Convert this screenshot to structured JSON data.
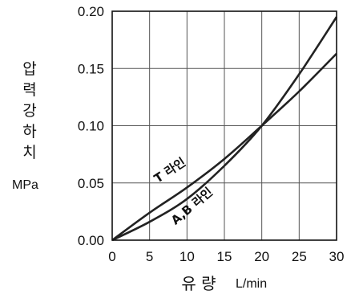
{
  "chart_data": {
    "type": "line",
    "title": "",
    "xlabel": "유 량",
    "xlabel_unit": "L/min",
    "ylabel_chars": [
      "압",
      "력",
      "강",
      "하",
      "치"
    ],
    "ylabel_unit": "MPa",
    "xlim": [
      0,
      30
    ],
    "ylim": [
      0,
      0.2
    ],
    "x_ticks": [
      0,
      5,
      10,
      15,
      20,
      25,
      30
    ],
    "x_tick_labels": [
      "0",
      "5",
      "10",
      "15",
      "20",
      "25",
      "30"
    ],
    "y_ticks": [
      0,
      0.05,
      0.1,
      0.15,
      0.2
    ],
    "y_tick_labels": [
      "0.00",
      "0.05",
      "0.10",
      "0.15",
      "0.20"
    ],
    "grid": true,
    "legend": "none",
    "series": [
      {
        "name": "T 라인",
        "x": [
          0,
          5,
          10,
          15,
          20,
          25,
          30
        ],
        "y": [
          0,
          0.024,
          0.046,
          0.071,
          0.1,
          0.13,
          0.163
        ],
        "label_at": [
          8,
          0.058
        ],
        "color": "#222222"
      },
      {
        "name": "A,B 라인",
        "x": [
          0,
          5,
          10,
          15,
          20,
          25,
          30
        ],
        "y": [
          0,
          0.016,
          0.036,
          0.065,
          0.1,
          0.145,
          0.195
        ],
        "label_at": [
          11,
          0.027
        ],
        "color": "#222222"
      }
    ]
  }
}
